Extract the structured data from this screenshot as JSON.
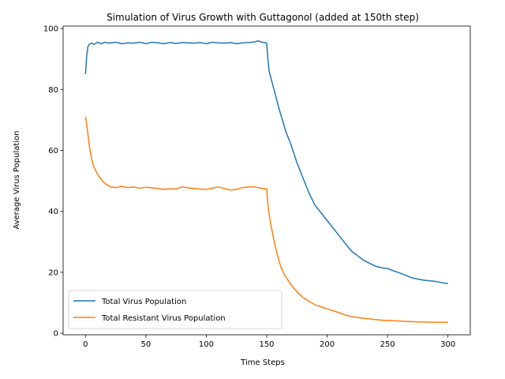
{
  "chart_data": {
    "type": "line",
    "title": "Simulation of Virus Growth with Guttagonol (added at 150th step)",
    "xlabel": "Time Steps",
    "ylabel": "Average Virus Population",
    "xlim": [
      -18.5,
      318.5
    ],
    "ylim": [
      -0.5,
      100.8
    ],
    "xticks": [
      0,
      50,
      100,
      150,
      200,
      250,
      300
    ],
    "yticks": [
      0,
      20,
      40,
      60,
      80,
      100
    ],
    "grid": false,
    "legend_position": "lower-left",
    "series": [
      {
        "name": "Total Virus Population",
        "color": "#1f77b4",
        "x": [
          0,
          1,
          2,
          3,
          5,
          7,
          10,
          13,
          16,
          20,
          25,
          30,
          35,
          40,
          45,
          50,
          55,
          60,
          65,
          70,
          75,
          80,
          85,
          90,
          95,
          100,
          105,
          110,
          115,
          120,
          125,
          130,
          135,
          140,
          143,
          145,
          148,
          150,
          151,
          152,
          154,
          156,
          158,
          160,
          163,
          166,
          170,
          175,
          180,
          185,
          190,
          195,
          200,
          205,
          210,
          215,
          220,
          225,
          230,
          235,
          240,
          245,
          250,
          255,
          260,
          265,
          270,
          275,
          280,
          285,
          290,
          295,
          300
        ],
        "values": [
          85.0,
          91.0,
          94.0,
          94.8,
          95.2,
          94.8,
          95.5,
          95.0,
          95.5,
          95.2,
          95.5,
          95.0,
          95.3,
          95.2,
          95.5,
          95.0,
          95.5,
          95.3,
          95.0,
          95.4,
          95.1,
          95.4,
          95.3,
          95.2,
          95.4,
          95.0,
          95.5,
          95.3,
          95.2,
          95.4,
          95.0,
          95.3,
          95.4,
          95.6,
          96.0,
          95.6,
          95.4,
          95.2,
          90.0,
          86.0,
          83.0,
          80.0,
          77.0,
          74.0,
          70.0,
          66.0,
          62.0,
          56.0,
          51.0,
          46.0,
          42.0,
          39.5,
          37.0,
          34.5,
          32.0,
          29.5,
          27.0,
          25.5,
          24.0,
          23.0,
          22.0,
          21.5,
          21.2,
          20.5,
          19.8,
          19.0,
          18.2,
          17.8,
          17.4,
          17.2,
          17.0,
          16.6,
          16.3
        ]
      },
      {
        "name": "Total Resistant Virus Population",
        "color": "#ff7f0e",
        "x": [
          0,
          1,
          2,
          3,
          4,
          5,
          6,
          7,
          8,
          10,
          12,
          15,
          18,
          21,
          25,
          30,
          35,
          40,
          45,
          50,
          55,
          60,
          65,
          70,
          75,
          80,
          85,
          90,
          95,
          100,
          105,
          110,
          115,
          120,
          125,
          130,
          135,
          140,
          145,
          150,
          151,
          152,
          154,
          156,
          158,
          160,
          162,
          165,
          168,
          172,
          176,
          180,
          185,
          190,
          195,
          200,
          205,
          210,
          215,
          220,
          225,
          230,
          235,
          240,
          245,
          250,
          255,
          260,
          265,
          270,
          275,
          280,
          285,
          290,
          295,
          300
        ],
        "values": [
          71.0,
          68.5,
          65.5,
          62.0,
          59.5,
          57.5,
          55.8,
          54.5,
          53.8,
          52.2,
          51.0,
          49.5,
          48.7,
          48.0,
          47.8,
          48.2,
          47.8,
          48.0,
          47.6,
          47.9,
          47.7,
          47.5,
          47.2,
          47.4,
          47.3,
          48.0,
          47.7,
          47.5,
          47.3,
          47.2,
          47.6,
          48.0,
          47.5,
          47.0,
          47.2,
          47.8,
          48.0,
          48.0,
          47.6,
          47.4,
          42.0,
          39.0,
          34.5,
          30.5,
          27.0,
          24.0,
          21.5,
          19.0,
          17.2,
          15.0,
          13.2,
          11.8,
          10.5,
          9.3,
          8.7,
          8.0,
          7.4,
          6.7,
          6.0,
          5.5,
          5.2,
          4.9,
          4.7,
          4.5,
          4.3,
          4.2,
          4.1,
          4.0,
          3.9,
          3.8,
          3.7,
          3.7,
          3.6,
          3.6,
          3.6,
          3.6
        ]
      }
    ]
  }
}
